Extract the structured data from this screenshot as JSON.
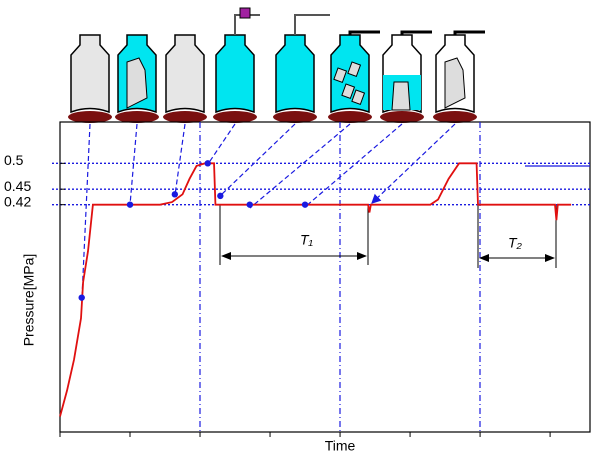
{
  "chart_data": {
    "type": "line",
    "y_label": "Pressure[MPa]",
    "x_label": "Time",
    "xlim": [
      0,
      7.57
    ],
    "xticks": [
      0,
      1,
      2,
      3,
      4,
      5,
      6,
      7
    ],
    "ylim": [
      -0.02,
      0.58
    ],
    "yticks": [
      0.42,
      0.45,
      0.5
    ],
    "grid": true,
    "series": [
      {
        "color": "#e01010",
        "style": "line",
        "x": [
          0,
          0.1,
          0.2,
          0.3,
          0.33,
          0.4,
          0.47,
          1.43,
          1.6,
          1.75,
          1.85,
          1.95,
          2.07,
          2.2,
          2.22,
          4.4,
          4.42,
          4.44,
          5.29,
          5.4,
          5.55,
          5.7,
          5.95,
          5.97,
          7.07,
          7.09,
          7.11,
          7.3
        ],
        "values": [
          0.01,
          0.06,
          0.12,
          0.2,
          0.27,
          0.33,
          0.42,
          0.42,
          0.425,
          0.44,
          0.47,
          0.495,
          0.5,
          0.5,
          0.42,
          0.42,
          0.405,
          0.42,
          0.42,
          0.43,
          0.47,
          0.5,
          0.5,
          0.42,
          0.42,
          0.39,
          0.42,
          0.42
        ]
      },
      {
        "color": "#1a1ae0",
        "style": "markers",
        "x": [
          0.31,
          1.0,
          1.64,
          2.11,
          2.29,
          2.71,
          3.5
        ],
        "values": [
          0.24,
          0.42,
          0.44,
          0.5,
          0.437,
          0.42,
          0.42
        ]
      }
    ],
    "annotations": [
      {
        "text": "T₁"
      },
      {
        "text": "T₂"
      }
    ]
  }
}
